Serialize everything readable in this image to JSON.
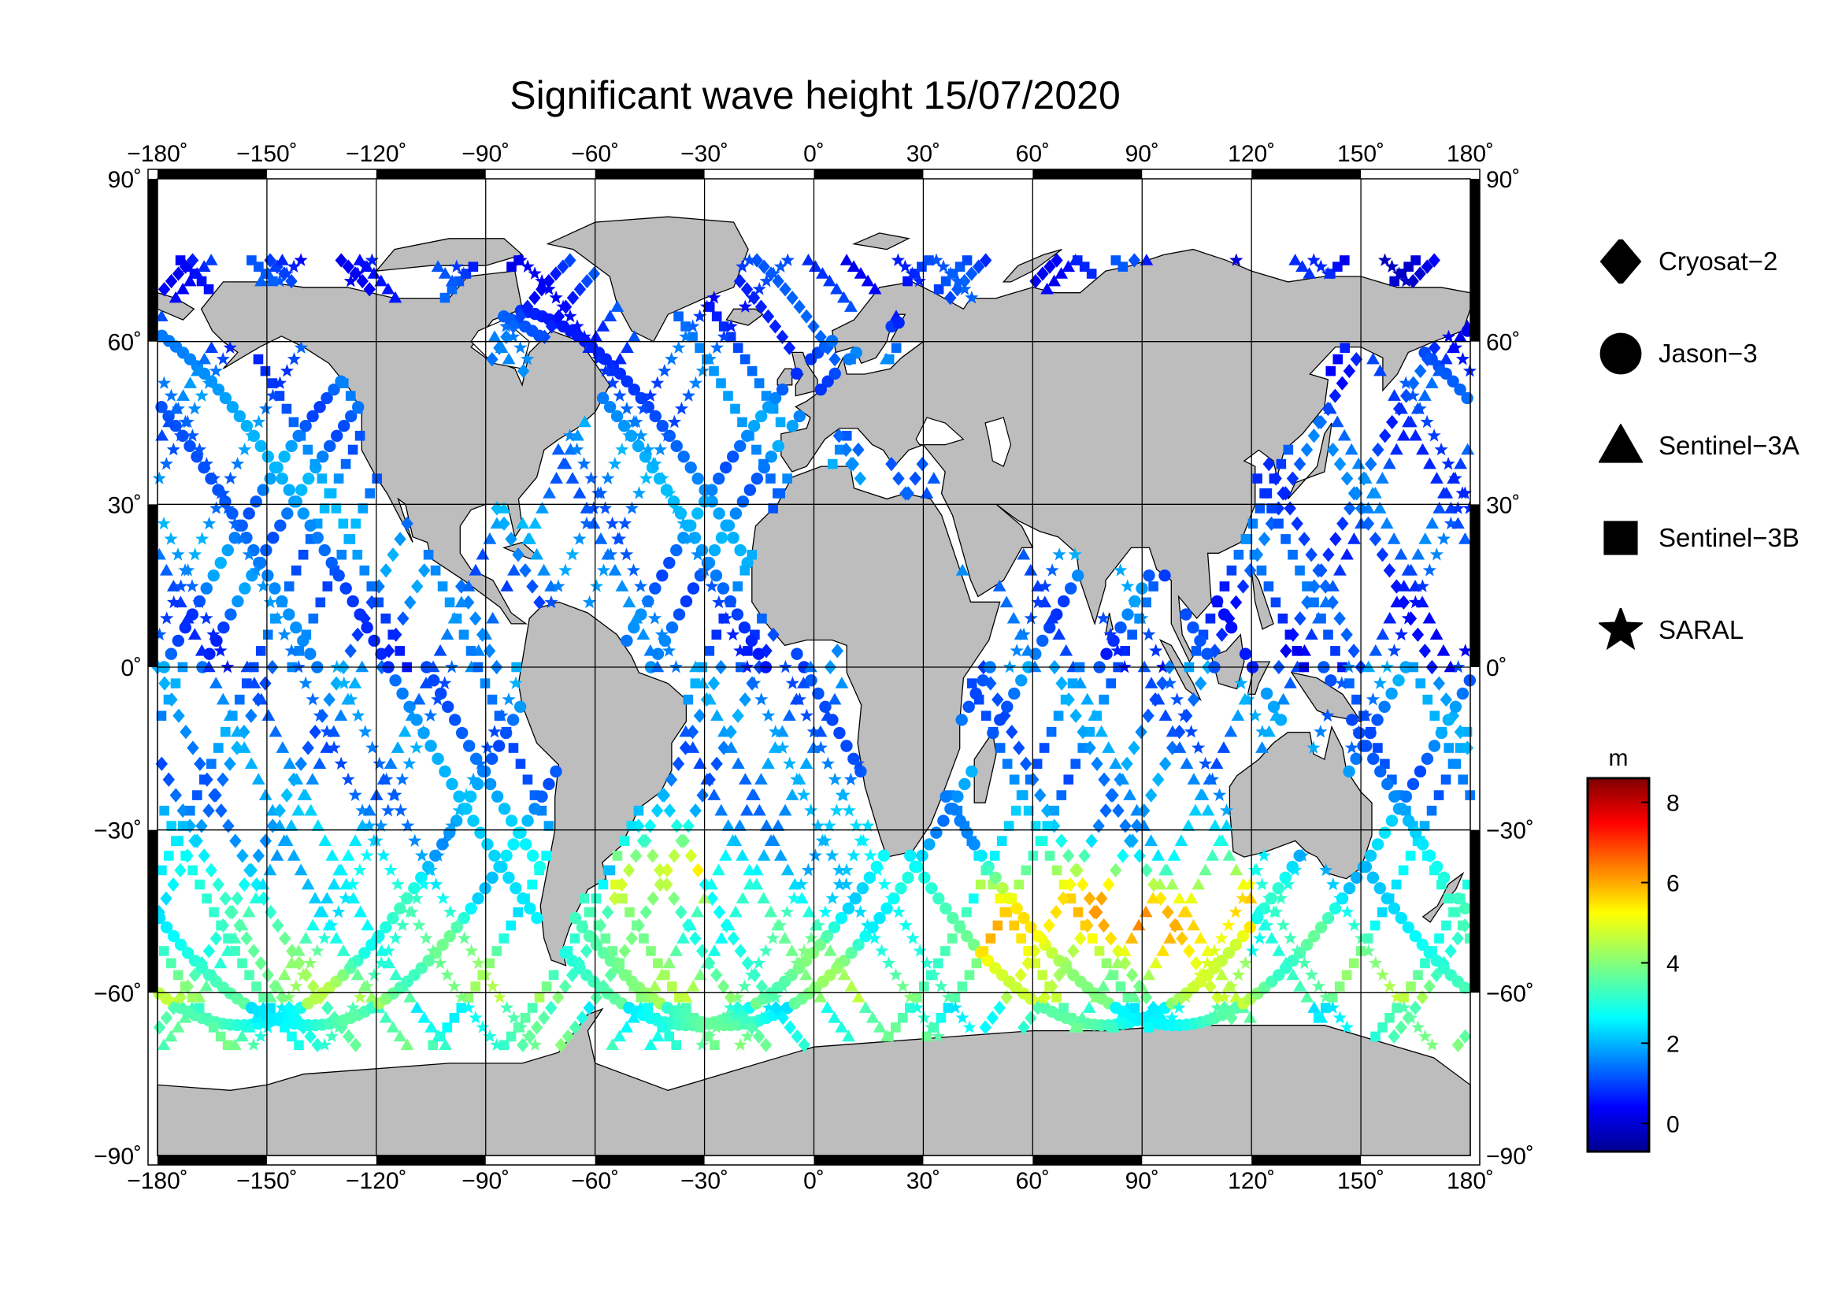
{
  "title": "Significant wave height 15/07/2020",
  "map": {
    "lon_ticks": [
      "−180˚",
      "−150˚",
      "−120˚",
      "−90˚",
      "−60˚",
      "−30˚",
      "0˚",
      "30˚",
      "60˚",
      "90˚",
      "120˚",
      "150˚",
      "180˚"
    ],
    "lat_ticks": [
      "90˚",
      "60˚",
      "30˚",
      "0˚",
      "−30˚",
      "−60˚",
      "−90˚"
    ],
    "lon_range": [
      -180,
      180
    ],
    "lat_range": [
      -90,
      90
    ],
    "grid": true,
    "land_color": "#bdbdbd",
    "ocean_color": "#ffffff"
  },
  "legend": {
    "items": [
      {
        "label": "Cryosat−2",
        "symbol": "diamond"
      },
      {
        "label": "Jason−3",
        "symbol": "circle"
      },
      {
        "label": "Sentinel−3A",
        "symbol": "triangle"
      },
      {
        "label": "Sentinel−3B",
        "symbol": "square"
      },
      {
        "label": "SARAL",
        "symbol": "star"
      }
    ]
  },
  "colorbar": {
    "unit": "m",
    "min": -0.7,
    "max": 8.6,
    "ticks": [
      "8",
      "6",
      "4",
      "2",
      "0"
    ],
    "tick_values": [
      8,
      6,
      4,
      2,
      0
    ],
    "colormap": "jet"
  }
}
